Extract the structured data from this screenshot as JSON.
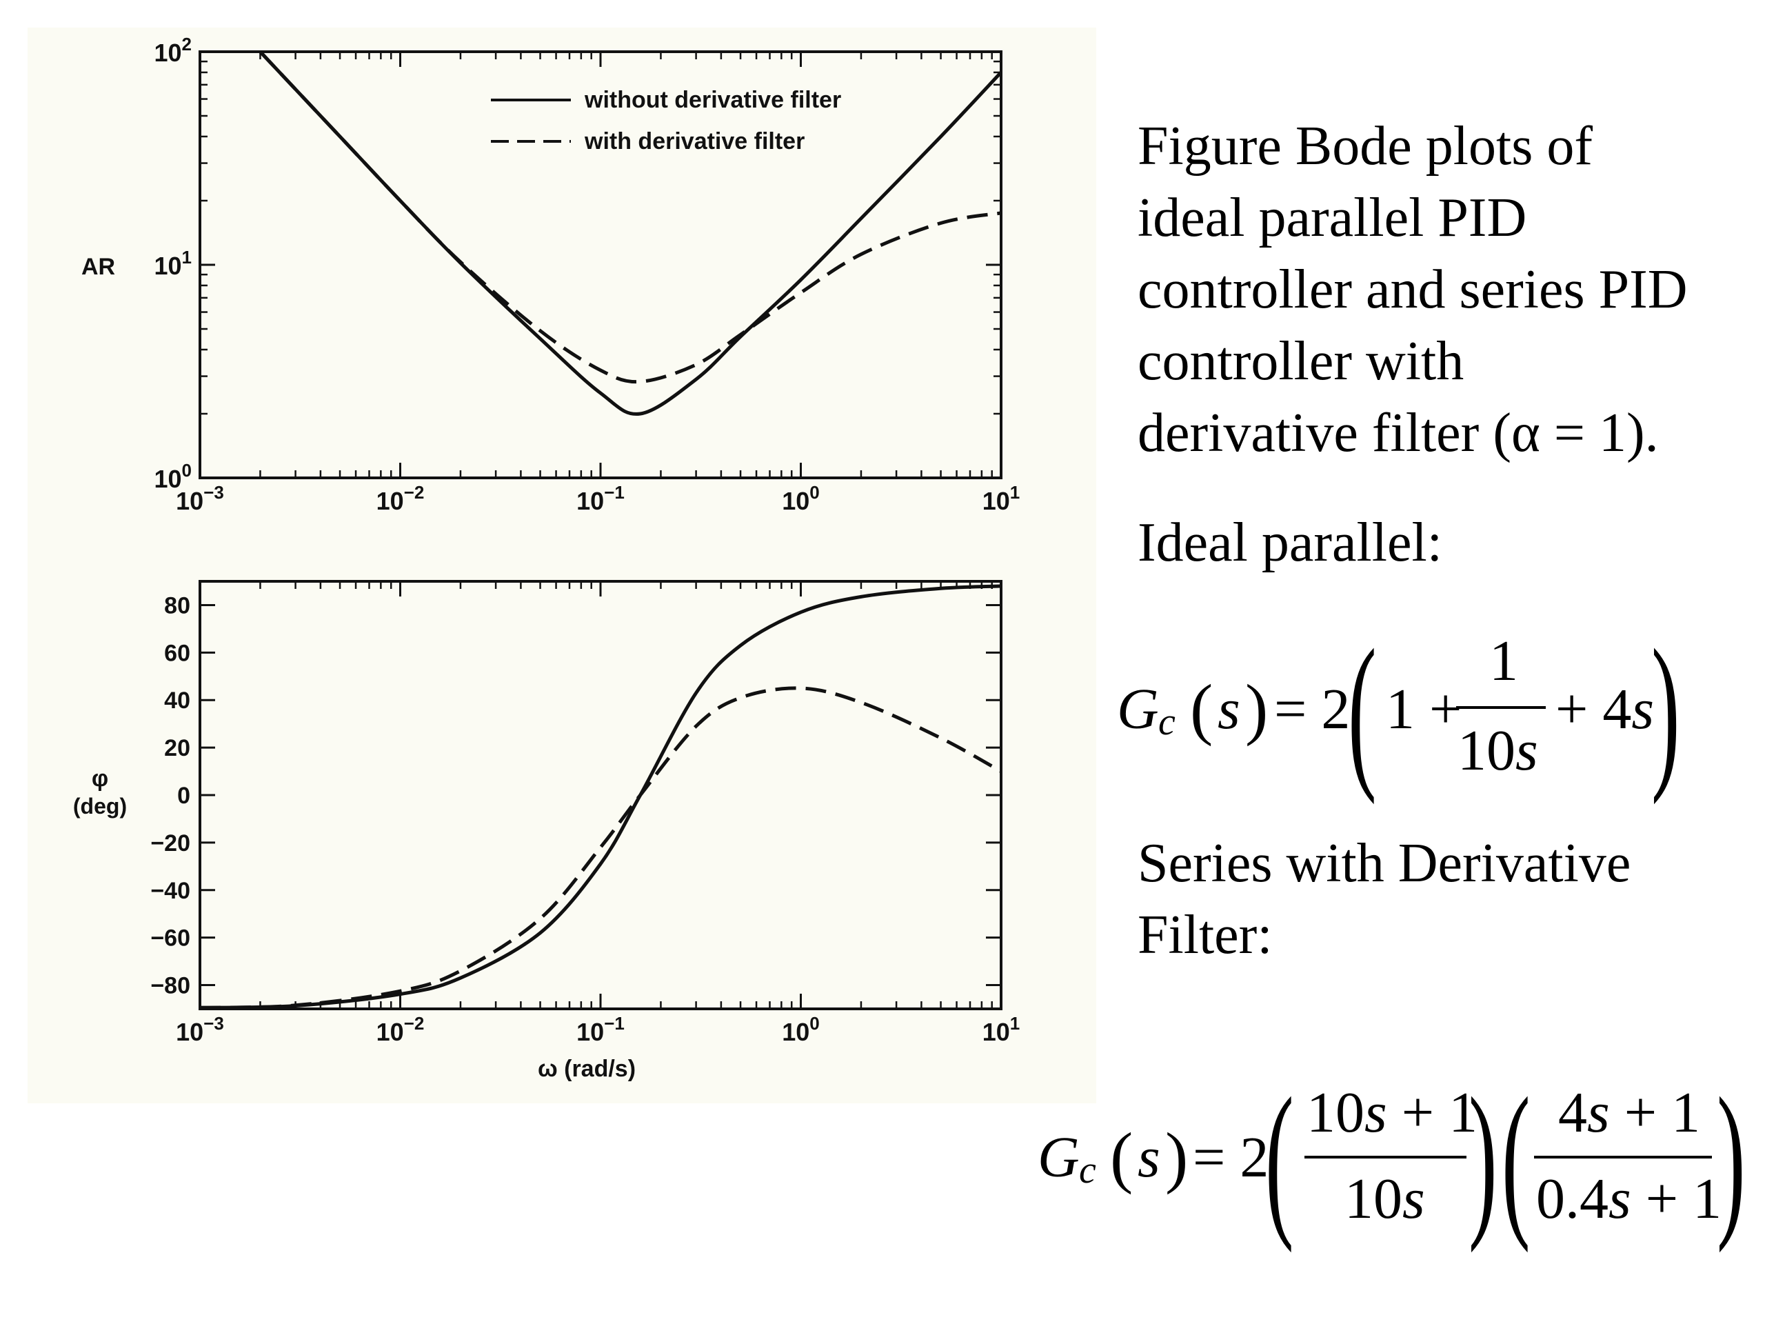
{
  "caption": {
    "lines": [
      "Figure Bode plots of",
      "ideal parallel PID",
      "controller and series PID",
      "controller with",
      "derivative filter (α = 1)."
    ]
  },
  "ideal_label": "Ideal parallel:",
  "series_label": {
    "line1": "Series with Derivative",
    "line2": "Filter:"
  },
  "eq1": {
    "G": "G",
    "sub": "c",
    "lp": "(",
    "s": "s",
    "rp": ")",
    "eqsign": "= 2",
    "one_plus": "1 +",
    "num": "1",
    "den_a": "10",
    "den_s": "s",
    "tail_a": "+ 4",
    "tail_s": "s"
  },
  "eq2": {
    "G": "G",
    "sub": "c",
    "lp": "(",
    "s": "s",
    "rp": ")",
    "eqsign": "= 2",
    "num1_a": "10",
    "num1_s": "s",
    "num1_b": " + 1",
    "den1_a": "10",
    "den1_s": "s",
    "num2_a": "4",
    "num2_s": "s",
    "num2_b": " + 1",
    "den2_a": "0.4",
    "den2_s": "s",
    "den2_b": " + 1"
  },
  "chart_data": [
    {
      "type": "line",
      "ylabel": "AR",
      "xscale": "log",
      "yscale": "log",
      "xlim": [
        0.001,
        10
      ],
      "ylim": [
        1,
        100
      ],
      "xticks": [
        "10^-3",
        "10^-2",
        "10^-1",
        "10^0",
        "10^1"
      ],
      "yticks": [
        "10^0",
        "10^1",
        "10^2"
      ],
      "legend_position": "top-center",
      "series": [
        {
          "name": "without derivative filter",
          "style": "solid",
          "x": [
            0.002,
            0.005,
            0.01,
            0.02,
            0.05,
            0.1,
            0.158,
            0.3,
            0.5,
            1,
            2,
            5,
            10
          ],
          "y": [
            100,
            40,
            20,
            10.2,
            4.5,
            2.5,
            2.0,
            2.9,
            4.6,
            8.5,
            16.5,
            40,
            80
          ]
        },
        {
          "name": "with derivative filter",
          "style": "dashed",
          "x": [
            0.002,
            0.005,
            0.01,
            0.02,
            0.05,
            0.1,
            0.158,
            0.3,
            0.5,
            1,
            2,
            5,
            10
          ],
          "y": [
            100,
            40,
            20,
            10.3,
            4.9,
            3.2,
            2.83,
            3.4,
            4.7,
            7.4,
            11.2,
            15.7,
            17.5
          ]
        }
      ]
    },
    {
      "type": "line",
      "xlabel": "ω (rad/s)",
      "ylabel": "φ (deg)",
      "xscale": "log",
      "xlim": [
        0.001,
        10
      ],
      "ylim": [
        -90,
        90
      ],
      "xticks": [
        "10^-3",
        "10^-2",
        "10^-1",
        "10^0",
        "10^1"
      ],
      "yticks": [
        80,
        60,
        40,
        20,
        0,
        -20,
        -40,
        -60,
        -80
      ],
      "series": [
        {
          "name": "without derivative filter",
          "style": "solid",
          "x": [
            0.001,
            0.003,
            0.01,
            0.02,
            0.05,
            0.1,
            0.158,
            0.3,
            0.5,
            1,
            2,
            5,
            10
          ],
          "y": [
            -89.5,
            -88.7,
            -83.8,
            -77,
            -58,
            -29,
            0,
            43,
            63,
            77,
            83.5,
            87,
            88
          ]
        },
        {
          "name": "with derivative filter",
          "style": "dashed",
          "x": [
            0.001,
            0.003,
            0.01,
            0.02,
            0.05,
            0.1,
            0.158,
            0.3,
            0.5,
            1,
            2,
            5,
            10
          ],
          "y": [
            -89.5,
            -88.5,
            -82.5,
            -74,
            -52,
            -22,
            0,
            29,
            41,
            45,
            39,
            24,
            10
          ]
        }
      ]
    }
  ]
}
